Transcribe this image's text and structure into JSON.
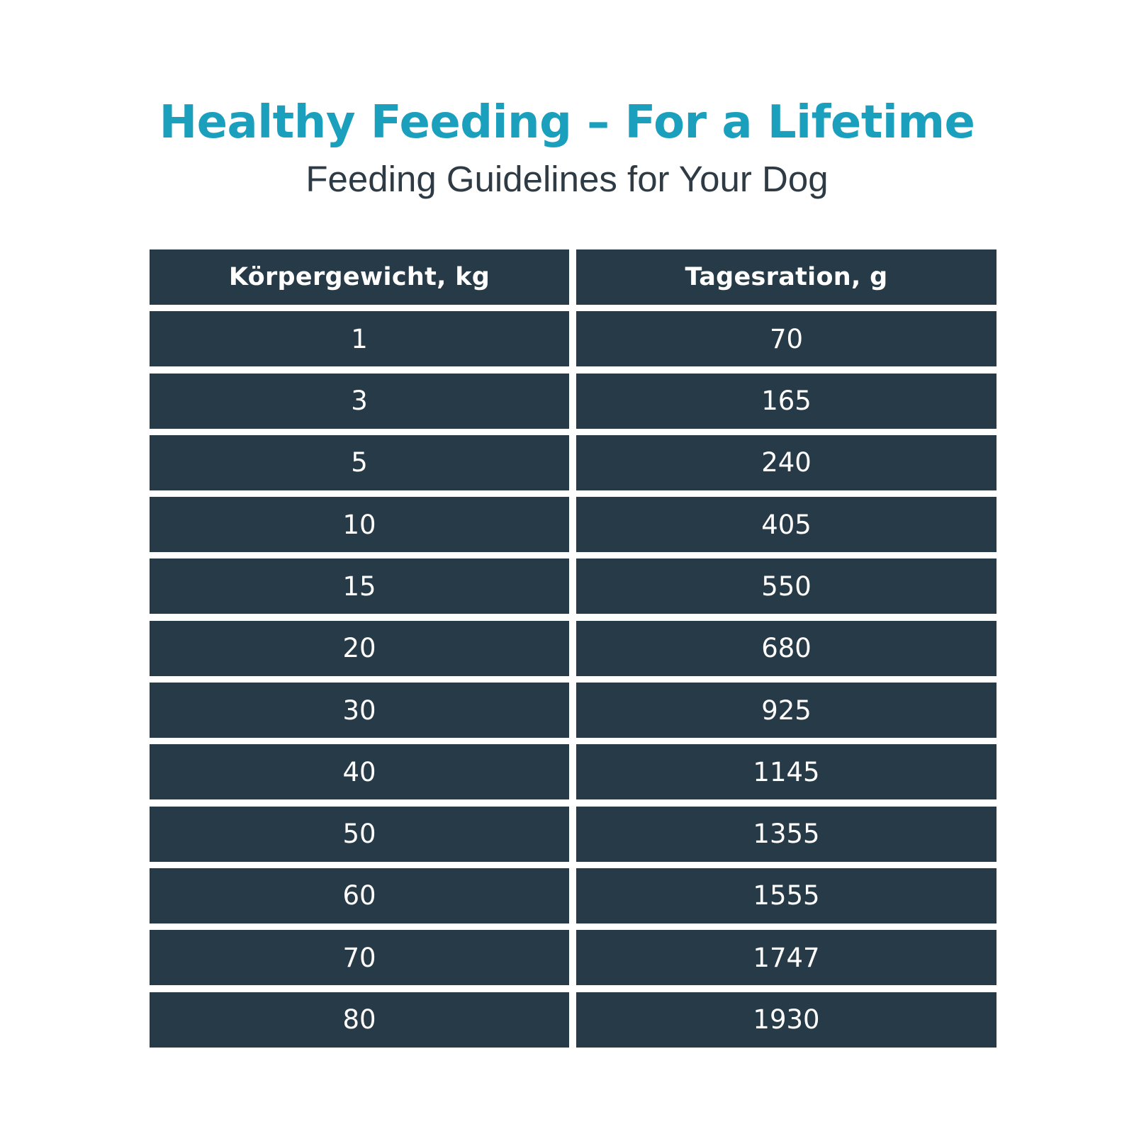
{
  "header": {
    "title": "Healthy Feeding – For a Lifetime",
    "subtitle": "Feeding Guidelines for Your Dog"
  },
  "colors": {
    "title": "#1a9fbd",
    "subtitle": "#2e3b45",
    "cell_background": "#263a47",
    "cell_text": "#ffffff",
    "page_background": "#ffffff"
  },
  "table": {
    "columns": [
      "Körpergewicht, kg",
      "Tagesration, g"
    ],
    "rows": [
      [
        "1",
        "70"
      ],
      [
        "3",
        "165"
      ],
      [
        "5",
        "240"
      ],
      [
        "10",
        "405"
      ],
      [
        "15",
        "550"
      ],
      [
        "20",
        "680"
      ],
      [
        "30",
        "925"
      ],
      [
        "40",
        "1145"
      ],
      [
        "50",
        "1355"
      ],
      [
        "60",
        "1555"
      ],
      [
        "70",
        "1747"
      ],
      [
        "80",
        "1930"
      ]
    ]
  }
}
